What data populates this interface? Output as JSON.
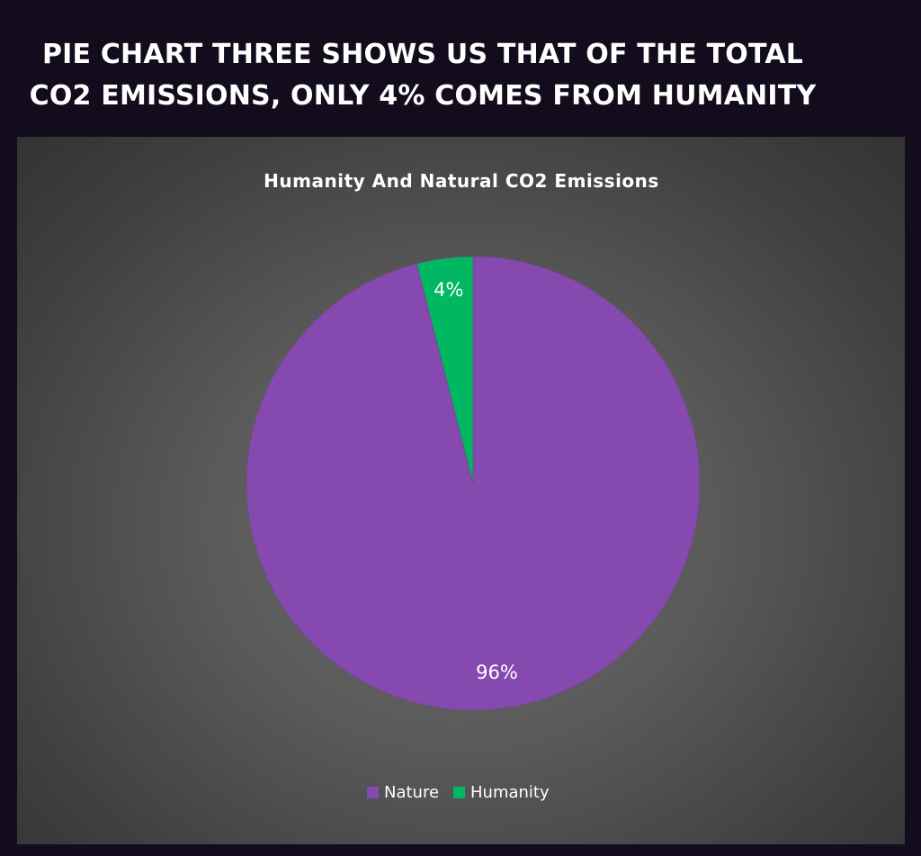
{
  "headline": {
    "line1": "PIE CHART THREE SHOWS US THAT OF THE TOTAL",
    "line2": "CO2 EMISSIONS, ONLY 4% COMES FROM HUMANITY"
  },
  "chart_data": {
    "type": "pie",
    "title": "Humanity And Natural CO2 Emissions",
    "categories": [
      "Nature",
      "Humanity"
    ],
    "values": [
      96,
      4
    ],
    "labels": [
      "96%",
      "4%"
    ],
    "colors": [
      "#8649b0",
      "#00b862"
    ],
    "legend_position": "bottom",
    "start_direction": "top, clockwise from Humanity"
  }
}
